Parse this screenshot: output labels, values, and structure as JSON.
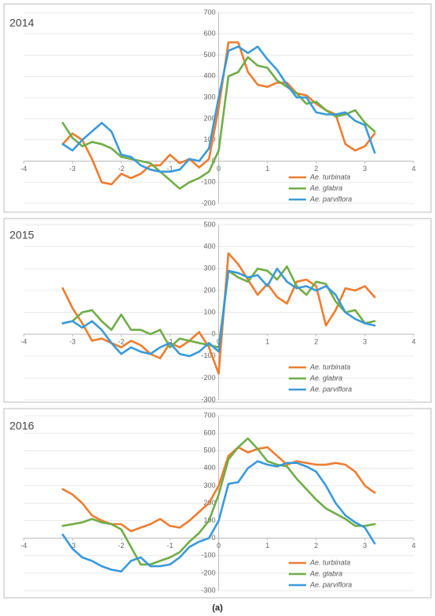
{
  "chart_data": [
    {
      "type": "line",
      "title": "2014",
      "x": [
        -3.2,
        -3.0,
        -2.8,
        -2.6,
        -2.4,
        -2.2,
        -2.0,
        -1.8,
        -1.6,
        -1.4,
        -1.2,
        -1.0,
        -0.8,
        -0.6,
        -0.4,
        -0.2,
        0,
        0.2,
        0.4,
        0.6,
        0.8,
        1.0,
        1.2,
        1.4,
        1.6,
        1.8,
        2.0,
        2.2,
        2.4,
        2.6,
        2.8,
        3.0,
        3.2
      ],
      "series": [
        {
          "name": "Ae. turbinata",
          "color": "#ed7d31",
          "values": [
            80,
            130,
            100,
            10,
            -100,
            -110,
            -60,
            -80,
            -60,
            -20,
            -20,
            30,
            -10,
            10,
            -30,
            10,
            250,
            560,
            560,
            420,
            360,
            350,
            370,
            370,
            320,
            310,
            270,
            240,
            220,
            80,
            50,
            70,
            130
          ]
        },
        {
          "name": "Ae. glabra",
          "color": "#70ad47",
          "values": [
            180,
            110,
            70,
            90,
            80,
            60,
            20,
            10,
            0,
            -10,
            -50,
            -90,
            -130,
            -100,
            -80,
            -50,
            50,
            400,
            420,
            490,
            450,
            440,
            380,
            350,
            320,
            270,
            280,
            240,
            210,
            220,
            240,
            180,
            140
          ]
        },
        {
          "name": "Ae. parviflora",
          "color": "#3a9ad9",
          "values": [
            80,
            50,
            100,
            140,
            180,
            140,
            30,
            20,
            -20,
            -40,
            -50,
            -50,
            -40,
            10,
            0,
            60,
            300,
            520,
            540,
            510,
            540,
            480,
            430,
            360,
            300,
            300,
            230,
            220,
            220,
            230,
            190,
            170,
            40
          ]
        }
      ],
      "xlim": [
        -4,
        4
      ],
      "xticks": [
        -4,
        -3,
        -2,
        -1,
        0,
        1,
        2,
        3,
        4
      ],
      "ylim": [
        -200,
        700
      ],
      "yticks": [
        -200,
        -100,
        0,
        100,
        200,
        300,
        400,
        500,
        600,
        700
      ],
      "grid": true
    },
    {
      "type": "line",
      "title": "2015",
      "x": [
        -3.2,
        -3.0,
        -2.8,
        -2.6,
        -2.4,
        -2.2,
        -2.0,
        -1.8,
        -1.6,
        -1.4,
        -1.2,
        -1.0,
        -0.8,
        -0.6,
        -0.4,
        -0.2,
        0,
        0.2,
        0.4,
        0.6,
        0.8,
        1.0,
        1.2,
        1.4,
        1.6,
        1.8,
        2.0,
        2.2,
        2.4,
        2.6,
        2.8,
        3.0,
        3.2
      ],
      "series": [
        {
          "name": "Ae. turbinata",
          "color": "#ed7d31",
          "values": [
            210,
            120,
            50,
            -30,
            -20,
            -40,
            -60,
            -30,
            -50,
            -90,
            -110,
            -40,
            -60,
            -30,
            10,
            -60,
            -180,
            370,
            320,
            250,
            180,
            230,
            170,
            140,
            240,
            250,
            220,
            40,
            110,
            210,
            200,
            220,
            170
          ]
        },
        {
          "name": "Ae. glabra",
          "color": "#70ad47",
          "values": [
            50,
            60,
            100,
            110,
            60,
            20,
            90,
            20,
            20,
            0,
            20,
            -60,
            -20,
            -30,
            -40,
            -50,
            -60,
            290,
            260,
            240,
            300,
            290,
            250,
            310,
            220,
            180,
            240,
            230,
            150,
            100,
            110,
            50,
            60
          ]
        },
        {
          "name": "Ae. parviflora",
          "color": "#3a9ad9",
          "values": [
            50,
            60,
            30,
            60,
            20,
            -40,
            -90,
            -60,
            -80,
            -90,
            -60,
            -40,
            -90,
            -100,
            -80,
            -40,
            -80,
            290,
            280,
            260,
            270,
            220,
            300,
            240,
            210,
            220,
            200,
            220,
            180,
            100,
            70,
            50,
            40
          ]
        }
      ],
      "xlim": [
        -4,
        4
      ],
      "xticks": [
        -4,
        -3,
        -2,
        -1,
        0,
        1,
        2,
        3,
        4
      ],
      "ylim": [
        -300,
        500
      ],
      "yticks": [
        -300,
        -200,
        -100,
        0,
        100,
        200,
        300,
        400,
        500
      ],
      "grid": true
    },
    {
      "type": "line",
      "title": "2016",
      "x": [
        -3.2,
        -3.0,
        -2.8,
        -2.6,
        -2.4,
        -2.2,
        -2.0,
        -1.8,
        -1.6,
        -1.4,
        -1.2,
        -1.0,
        -0.8,
        -0.6,
        -0.4,
        -0.2,
        0,
        0.2,
        0.4,
        0.6,
        0.8,
        1.0,
        1.2,
        1.4,
        1.6,
        1.8,
        2.0,
        2.2,
        2.4,
        2.6,
        2.8,
        3.0,
        3.2
      ],
      "series": [
        {
          "name": "Ae. turbinata",
          "color": "#ed7d31",
          "values": [
            280,
            250,
            200,
            130,
            100,
            80,
            80,
            40,
            60,
            80,
            110,
            70,
            60,
            100,
            150,
            200,
            300,
            470,
            520,
            490,
            510,
            520,
            470,
            420,
            440,
            430,
            420,
            420,
            430,
            420,
            380,
            300,
            260
          ]
        },
        {
          "name": "Ae. glabra",
          "color": "#70ad47",
          "values": [
            70,
            80,
            90,
            110,
            90,
            80,
            50,
            -50,
            -150,
            -150,
            -130,
            -110,
            -80,
            -20,
            30,
            100,
            250,
            450,
            520,
            570,
            510,
            440,
            420,
            410,
            340,
            280,
            220,
            170,
            140,
            110,
            70,
            70,
            80
          ]
        },
        {
          "name": "Ae. parviflora",
          "color": "#3a9ad9",
          "values": [
            20,
            -60,
            -110,
            -130,
            -160,
            -180,
            -190,
            -130,
            -110,
            -160,
            -160,
            -150,
            -110,
            -50,
            -20,
            0,
            100,
            310,
            320,
            400,
            440,
            420,
            410,
            430,
            430,
            410,
            380,
            300,
            200,
            130,
            90,
            60,
            -30
          ]
        }
      ],
      "xlim": [
        -4,
        4
      ],
      "xticks": [
        -4,
        -3,
        -2,
        -1,
        0,
        1,
        2,
        3,
        4
      ],
      "ylim": [
        -300,
        700
      ],
      "yticks": [
        -300,
        -200,
        -100,
        0,
        100,
        200,
        300,
        400,
        500,
        600,
        700
      ],
      "grid": true
    }
  ],
  "caption": "(a)"
}
